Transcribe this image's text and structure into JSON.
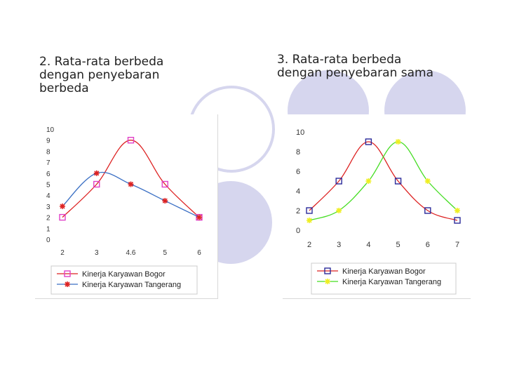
{
  "slide": {
    "heading_left": "2. Rata-rata berbeda\ndengan penyebaran\nberbeda",
    "heading_right": "3. Rata-rata berbeda\ndengan penyebaran sama"
  },
  "colors": {
    "red": "#dd2222",
    "blue": "#3a6fc4",
    "green": "#44dd22",
    "magenta": "#e040c8",
    "navy": "#2a2a9a",
    "yellow": "#eeee22",
    "decor": "#d6d6ee"
  },
  "chart_data": [
    {
      "type": "line",
      "categories": [
        "2",
        "3",
        "4.6",
        "5",
        "6"
      ],
      "yticks": [
        "10",
        "9",
        "8",
        "7",
        "6",
        "5",
        "4",
        "3",
        "2",
        "1",
        "0"
      ],
      "ylim": [
        0,
        10
      ],
      "grid": false,
      "legend": "bottom",
      "series": [
        {
          "name": "Kinerja Karyawan Bogor",
          "values": [
            2,
            5,
            9,
            5,
            2
          ],
          "color": "#dd2222",
          "marker": "square",
          "marker_color": "#e040c8"
        },
        {
          "name": "Kinerja Karyawan Tangerang",
          "values": [
            3,
            6,
            5,
            3.5,
            2
          ],
          "color": "#3a6fc4",
          "marker": "star",
          "marker_color": "#dd2222"
        }
      ]
    },
    {
      "type": "line",
      "categories": [
        "2",
        "3",
        "4",
        "5",
        "6",
        "7"
      ],
      "yticks": [
        "10",
        "8",
        "6",
        "4",
        "2",
        "0"
      ],
      "ylim": [
        0,
        10
      ],
      "grid": false,
      "legend": "bottom",
      "series": [
        {
          "name": "Kinerja Karyawan Bogor",
          "values": [
            2,
            5,
            9,
            5,
            2,
            1
          ],
          "color": "#dd2222",
          "marker": "square",
          "marker_color": "#2a2a9a"
        },
        {
          "name": "Kinerja Karyawan Tangerang",
          "values": [
            1,
            2,
            5,
            9,
            5,
            2
          ],
          "color": "#44dd22",
          "marker": "star",
          "marker_color": "#eeee22"
        }
      ]
    }
  ]
}
